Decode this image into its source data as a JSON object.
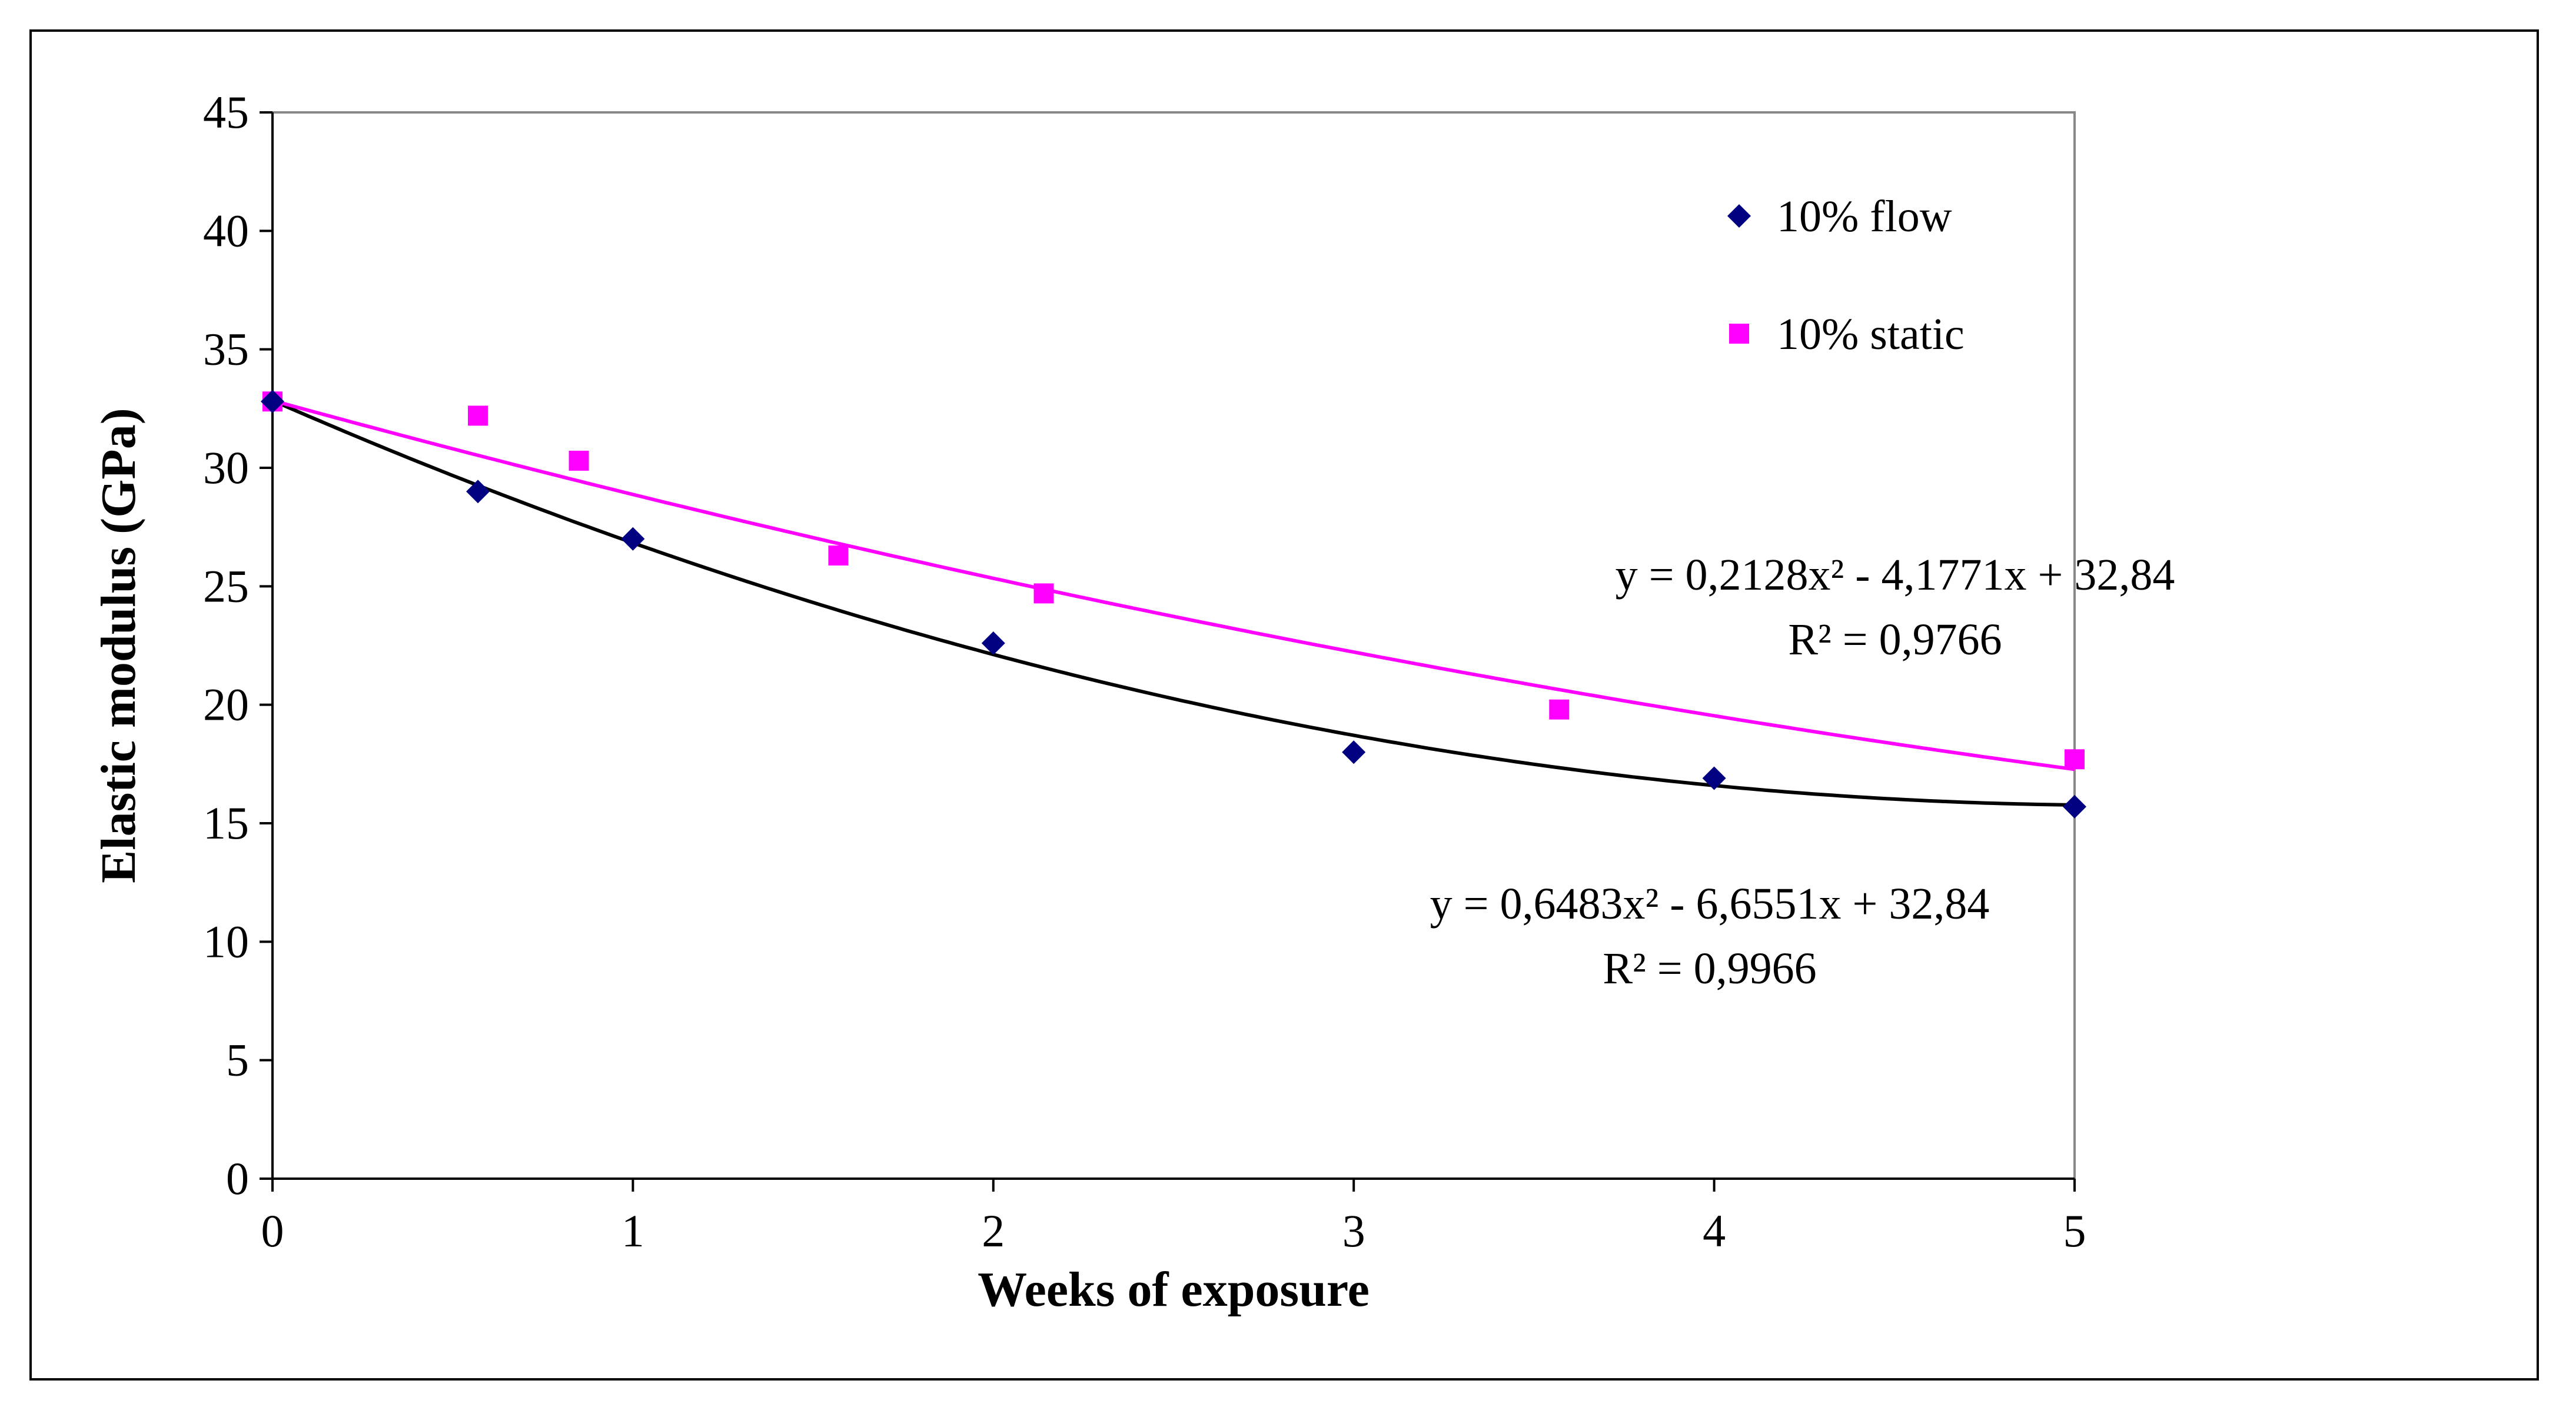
{
  "chart_data": {
    "type": "scatter",
    "xlabel": "Weeks of exposure",
    "ylabel": "Elastic modulus (GPa)",
    "xlim": [
      0,
      5
    ],
    "ylim": [
      0,
      45
    ],
    "x_ticks": [
      "0",
      "1",
      "2",
      "3",
      "4",
      "5"
    ],
    "y_ticks": [
      "0",
      "5",
      "10",
      "15",
      "20",
      "25",
      "30",
      "35",
      "40",
      "45"
    ],
    "grid": false,
    "legend_position": "top-right",
    "series": [
      {
        "name": "10% flow",
        "marker": "diamond",
        "color": "#000080",
        "x": [
          0,
          0.57,
          1,
          2,
          3,
          4,
          5
        ],
        "y": [
          32.8,
          29.0,
          27.0,
          22.6,
          18.0,
          16.9,
          15.7
        ],
        "trendline": {
          "type": "polynomial",
          "coefficients": [
            0.6483,
            -6.6551,
            32.84
          ],
          "color": "#000000",
          "equation": "y = 0,6483x² - 6,6551x + 32,84",
          "r2": "R² = 0,9966"
        }
      },
      {
        "name": "10% static",
        "marker": "square",
        "color": "#FF00FF",
        "x": [
          0,
          0.57,
          0.85,
          1.57,
          2.14,
          3.57,
          5
        ],
        "y": [
          32.8,
          32.2,
          30.3,
          26.3,
          24.7,
          19.8,
          17.7
        ],
        "trendline": {
          "type": "polynomial",
          "coefficients": [
            0.2128,
            -4.1771,
            32.84
          ],
          "color": "#FF00FF",
          "equation": "y = 0,2128x² - 4,1771x + 32,84",
          "r2": "R² = 0,9766"
        }
      }
    ]
  }
}
